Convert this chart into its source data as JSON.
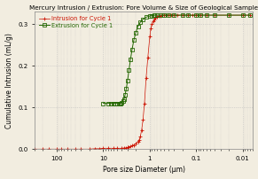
{
  "title": "Mercury Intrusion / Extrusion: Pore Volume & Size of Geological Sample",
  "xlabel": "Pore size Diameter (μm)",
  "ylabel": "Cumulative Intrusion (mL/g)",
  "xlim": [
    300,
    0.006
  ],
  "ylim": [
    0.0,
    0.33
  ],
  "yticks": [
    0.0,
    0.1,
    0.2,
    0.3
  ],
  "intrusion_color": "#cc1100",
  "extrusion_color": "#226600",
  "background_color": "#f2ede0",
  "grid_color": "#bbbbbb",
  "legend_labels": [
    "Intrusion for Cycle 1",
    "Extrusion for Cycle 1"
  ],
  "intrusion_x": [
    300,
    200,
    150,
    100,
    80,
    60,
    40,
    30,
    20,
    15,
    12,
    10,
    8,
    6,
    5,
    4,
    3.5,
    3.2,
    3.0,
    2.8,
    2.6,
    2.4,
    2.2,
    2.0,
    1.8,
    1.7,
    1.6,
    1.5,
    1.4,
    1.3,
    1.2,
    1.1,
    1.0,
    0.95,
    0.9,
    0.85,
    0.8,
    0.75,
    0.7,
    0.65,
    0.6,
    0.55,
    0.5,
    0.45,
    0.4,
    0.35,
    0.3,
    0.25,
    0.2,
    0.15,
    0.12,
    0.1,
    0.08,
    0.06,
    0.04,
    0.02,
    0.01,
    0.007
  ],
  "intrusion_y": [
    0.0,
    0.0,
    0.0,
    0.0,
    0.0,
    0.0,
    0.0,
    0.0,
    0.0,
    0.001,
    0.001,
    0.002,
    0.002,
    0.002,
    0.002,
    0.002,
    0.003,
    0.003,
    0.004,
    0.005,
    0.006,
    0.008,
    0.01,
    0.013,
    0.018,
    0.022,
    0.03,
    0.045,
    0.07,
    0.11,
    0.17,
    0.22,
    0.27,
    0.29,
    0.3,
    0.307,
    0.312,
    0.316,
    0.318,
    0.32,
    0.321,
    0.322,
    0.322,
    0.322,
    0.322,
    0.322,
    0.322,
    0.322,
    0.322,
    0.322,
    0.322,
    0.322,
    0.322,
    0.322,
    0.322,
    0.322,
    0.322,
    0.322
  ],
  "extrusion_x": [
    10,
    8,
    7,
    6,
    5.5,
    5,
    4.5,
    4.2,
    4.0,
    3.8,
    3.6,
    3.4,
    3.2,
    3.0,
    2.8,
    2.6,
    2.4,
    2.2,
    2.0,
    1.8,
    1.6,
    1.4,
    1.2,
    1.0,
    0.9,
    0.8,
    0.7,
    0.6,
    0.5,
    0.4,
    0.3,
    0.2,
    0.15,
    0.1,
    0.08,
    0.06,
    0.04,
    0.02,
    0.01,
    0.007
  ],
  "extrusion_y": [
    0.11,
    0.11,
    0.11,
    0.11,
    0.11,
    0.11,
    0.11,
    0.11,
    0.112,
    0.115,
    0.12,
    0.13,
    0.145,
    0.165,
    0.19,
    0.215,
    0.24,
    0.262,
    0.28,
    0.295,
    0.305,
    0.312,
    0.317,
    0.32,
    0.321,
    0.322,
    0.322,
    0.322,
    0.322,
    0.322,
    0.322,
    0.322,
    0.322,
    0.322,
    0.322,
    0.322,
    0.322,
    0.322,
    0.322,
    0.322
  ]
}
